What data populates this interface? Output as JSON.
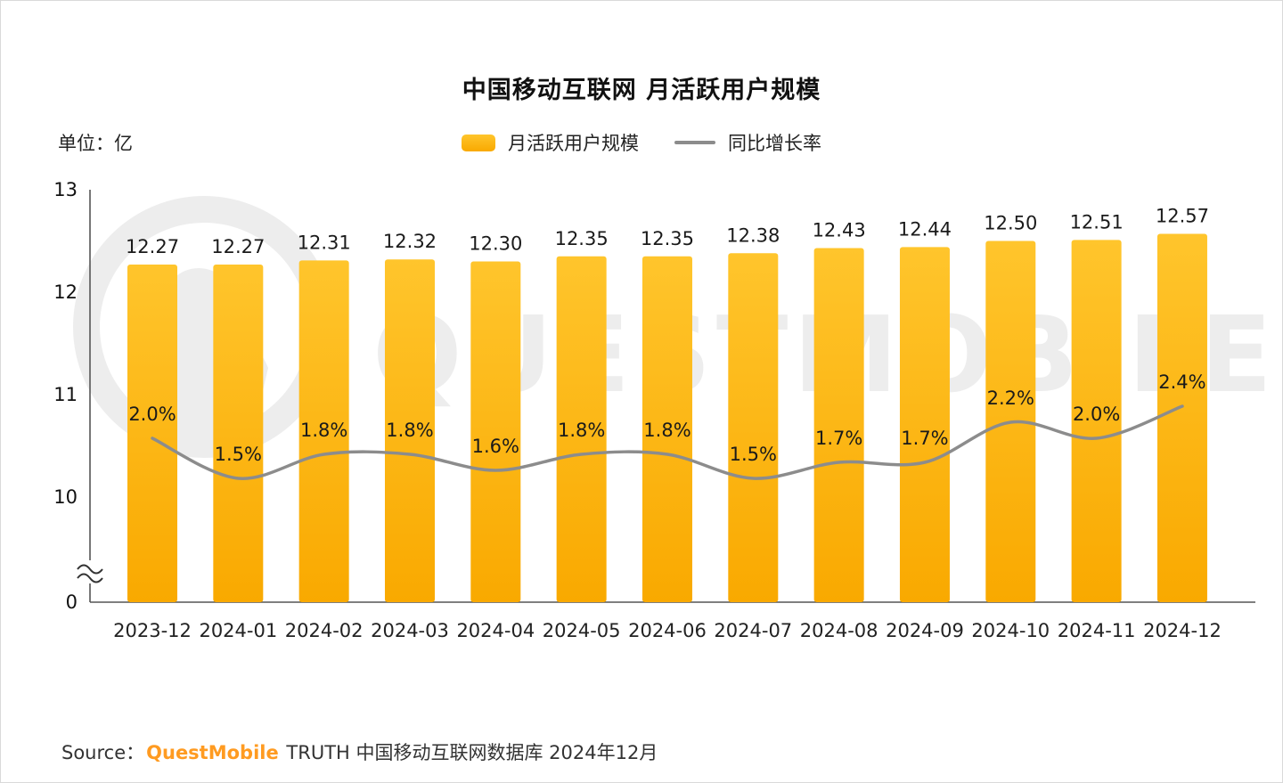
{
  "page": {
    "title": "中国移动互联网 月活跃用户规模",
    "unit_label": "单位：亿",
    "legend": {
      "bar_label": "月活跃用户规模",
      "line_label": "同比增长率"
    },
    "source": {
      "prefix": "Source：",
      "brand": "QuestMobile",
      "suffix": " TRUTH 中国移动互联网数据库 2024年12月"
    },
    "watermark": "QUESTMOBILE"
  },
  "colors": {
    "bar_top": "#ffc52c",
    "bar_bottom": "#f9a900",
    "line": "#8c8c8c",
    "axis": "#555555",
    "label": "#1a1a1a",
    "watermark": "#ededed",
    "brand_orange": "#ff9b21"
  },
  "chart_data": {
    "type": "bar",
    "title": "中国移动互联网 月活跃用户规模",
    "unit": "亿",
    "categories": [
      "2023-12",
      "2024-01",
      "2024-02",
      "2024-03",
      "2024-04",
      "2024-05",
      "2024-06",
      "2024-07",
      "2024-08",
      "2024-09",
      "2024-10",
      "2024-11",
      "2024-12"
    ],
    "series": [
      {
        "name": "月活跃用户规模",
        "type": "bar",
        "unit": "亿",
        "values": [
          12.27,
          12.27,
          12.31,
          12.32,
          12.3,
          12.35,
          12.35,
          12.38,
          12.43,
          12.44,
          12.5,
          12.51,
          12.57
        ],
        "labels": [
          "12.27",
          "12.27",
          "12.31",
          "12.32",
          "12.30",
          "12.35",
          "12.35",
          "12.38",
          "12.43",
          "12.44",
          "12.50",
          "12.51",
          "12.57"
        ]
      },
      {
        "name": "同比增长率",
        "type": "line",
        "unit": "%",
        "values": [
          2.0,
          1.5,
          1.8,
          1.8,
          1.6,
          1.8,
          1.8,
          1.5,
          1.7,
          1.7,
          2.2,
          2.0,
          2.4
        ],
        "labels": [
          "2.0%",
          "1.5%",
          "1.8%",
          "1.8%",
          "1.6%",
          "1.8%",
          "1.8%",
          "1.5%",
          "1.7%",
          "1.7%",
          "2.2%",
          "2.0%",
          "2.4%"
        ]
      }
    ],
    "y_axis": {
      "ticks": [
        13,
        12,
        11,
        10,
        0
      ],
      "axis_break": true
    },
    "legend_position": "top",
    "grid": false
  }
}
